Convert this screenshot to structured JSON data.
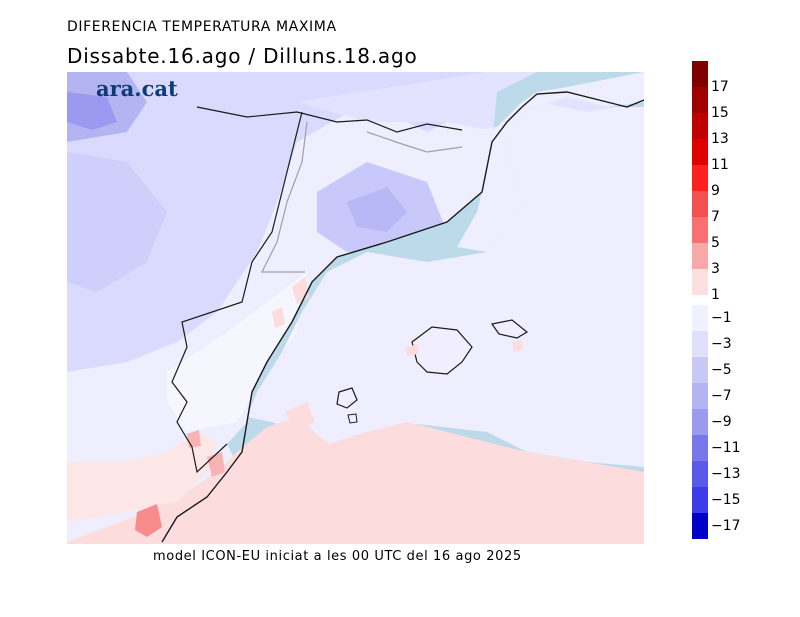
{
  "title": "DIFERENCIA TEMPERATURA MAXIMA",
  "subtitle": "Dissabte.16.ago  /  Dilluns.18.ago",
  "brand": "ara.cat",
  "caption": "model ICON-EU iniciat a les 00 UTC del 16 ago 2025",
  "colors": {
    "sea": "#bddaea",
    "land_pale_blue": "#eeeeff",
    "land_light_blue": "#dadaff",
    "land_mid_blue": "#c8c8fa",
    "land_blue": "#9a9af0",
    "land_pink": "#fcdcdc",
    "land_red": "#f88c8c",
    "coast": "#1a1a1a",
    "border": "#a0a0a0"
  },
  "legend": {
    "warm": [
      {
        "label": "17",
        "color": "#800000"
      },
      {
        "label": "15",
        "color": "#a00000"
      },
      {
        "label": "13",
        "color": "#c00000"
      },
      {
        "label": "11",
        "color": "#e00000"
      },
      {
        "label": "9",
        "color": "#ff2020"
      },
      {
        "label": "7",
        "color": "#f55050"
      },
      {
        "label": "5",
        "color": "#f87070"
      },
      {
        "label": "3",
        "color": "#f8a8a8"
      },
      {
        "label": "1",
        "color": "#fce0e0"
      }
    ],
    "cold": [
      {
        "label": "−1",
        "color": "#f0f0ff"
      },
      {
        "label": "−3",
        "color": "#e0e0fa"
      },
      {
        "label": "−5",
        "color": "#c8c8f5"
      },
      {
        "label": "−7",
        "color": "#b4b4f2"
      },
      {
        "label": "−9",
        "color": "#9a9aee"
      },
      {
        "label": "−11",
        "color": "#7878ea"
      },
      {
        "label": "−13",
        "color": "#5a5aea"
      },
      {
        "label": "−15",
        "color": "#3c3ce8"
      },
      {
        "label": "−17",
        "color": "#0000c8"
      }
    ]
  }
}
